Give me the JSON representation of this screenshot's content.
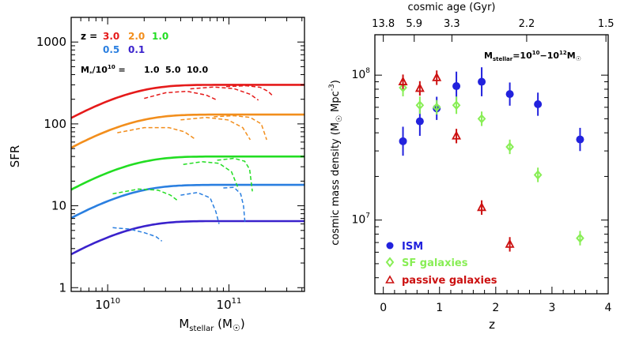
{
  "colors": {
    "z3.0": "#e51a1a",
    "z2.0": "#f28e1c",
    "z1.0": "#22dd22",
    "z0.5": "#2a7fe0",
    "z0.1": "#3a22cc",
    "ism": "#2222dd",
    "sf": "#88ee55",
    "passive": "#cc1111",
    "axis": "#000000"
  },
  "chart_data": [
    {
      "type": "line",
      "ylabel": "SFR",
      "xlabel_main": "M",
      "xlabel_sub": "stellar",
      "xlabel_unit_open": " (M",
      "xlabel_unit_close": ")",
      "xscale": "log",
      "yscale": "log",
      "xlim": [
        5000000000.0,
        420000000000.0
      ],
      "ylim": [
        0.9,
        2000
      ],
      "x_ticks": [
        {
          "value": 10000000000.0,
          "base": "10",
          "exp": "10"
        },
        {
          "value": 100000000000.0,
          "base": "10",
          "exp": "11"
        }
      ],
      "y_ticks": [
        {
          "value": 1,
          "label": "1"
        },
        {
          "value": 10,
          "label": "10"
        },
        {
          "value": 100,
          "label": "100"
        },
        {
          "value": 1000,
          "label": "1000"
        }
      ],
      "legend": {
        "z_prefix": "z =",
        "z_row1": [
          {
            "label": "3.0",
            "color_key": "z3.0"
          },
          {
            "label": "2.0",
            "color_key": "z2.0"
          },
          {
            "label": "1.0",
            "color_key": "z1.0"
          }
        ],
        "z_row2": [
          {
            "label": "0.5",
            "color_key": "z0.5"
          },
          {
            "label": "0.1",
            "color_key": "z0.1"
          }
        ],
        "m_label_main": "M",
        "m_label_sub": "*",
        "m_label_rest": "/10",
        "m_label_exp": "10",
        "m_label_eq": " =",
        "m_values": [
          "1.0",
          "5.0",
          "10.0"
        ]
      },
      "series": [
        {
          "name": "3.0",
          "color_key": "z3.0",
          "style": "solid",
          "amp": 300,
          "mc": 10000000000.0
        },
        {
          "name": "2.0",
          "color_key": "z2.0",
          "style": "solid",
          "amp": 130,
          "mc": 10000000000.0
        },
        {
          "name": "1.0",
          "color_key": "z1.0",
          "style": "solid",
          "amp": 40,
          "mc": 10000000000.0
        },
        {
          "name": "0.5",
          "color_key": "z0.5",
          "style": "solid",
          "amp": 18,
          "mc": 10000000000.0
        },
        {
          "name": "0.1",
          "color_key": "z0.1",
          "style": "solid",
          "amp": 6.5,
          "mc": 10000000000.0
        }
      ],
      "quench_curves": [
        {
          "color_key": "z3.0",
          "x": [
            20000000000.0,
            30000000000.0,
            45000000000.0,
            65000000000.0,
            80000000000.0
          ],
          "y": [
            205,
            240,
            250,
            225,
            195
          ]
        },
        {
          "color_key": "z3.0",
          "x": [
            48000000000.0,
            75000000000.0,
            110000000000.0,
            150000000000.0,
            175000000000.0
          ],
          "y": [
            268,
            282,
            270,
            230,
            195
          ]
        },
        {
          "color_key": "z3.0",
          "x": [
            95000000000.0,
            140000000000.0,
            180000000000.0,
            210000000000.0,
            230000000000.0
          ],
          "y": [
            286,
            292,
            280,
            250,
            220
          ]
        },
        {
          "color_key": "z2.0",
          "x": [
            12000000000.0,
            20000000000.0,
            32000000000.0,
            43000000000.0,
            52000000000.0
          ],
          "y": [
            78,
            90,
            90,
            80,
            66
          ]
        },
        {
          "color_key": "z2.0",
          "x": [
            40000000000.0,
            65000000000.0,
            98000000000.0,
            130000000000.0,
            150000000000.0
          ],
          "y": [
            112,
            120,
            112,
            90,
            64
          ]
        },
        {
          "color_key": "z2.0",
          "x": [
            75000000000.0,
            110000000000.0,
            150000000000.0,
            185000000000.0,
            205000000000.0
          ],
          "y": [
            122,
            126,
            120,
            100,
            64
          ]
        },
        {
          "color_key": "z1.0",
          "x": [
            11000000000.0,
            18000000000.0,
            26000000000.0,
            33000000000.0,
            38000000000.0
          ],
          "y": [
            14,
            16,
            15.5,
            13.5,
            11.5
          ]
        },
        {
          "color_key": "z1.0",
          "x": [
            42000000000.0,
            60000000000.0,
            83000000000.0,
            105000000000.0,
            120000000000.0
          ],
          "y": [
            32,
            34.5,
            33,
            26,
            16
          ]
        },
        {
          "color_key": "z1.0",
          "x": [
            80000000000.0,
            110000000000.0,
            135000000000.0,
            148000000000.0,
            156000000000.0
          ],
          "y": [
            36,
            38,
            35,
            28,
            15
          ]
        },
        {
          "color_key": "z0.5",
          "x": [
            11000000000.0,
            15000000000.0,
            20000000000.0,
            25000000000.0,
            28000000000.0
          ],
          "y": [
            5.4,
            5.2,
            4.7,
            4.2,
            3.7
          ]
        },
        {
          "color_key": "z0.5",
          "x": [
            40000000000.0,
            55000000000.0,
            70000000000.0,
            78000000000.0,
            83000000000.0
          ],
          "y": [
            13.5,
            14.5,
            12.5,
            8.5,
            6.0
          ]
        },
        {
          "color_key": "z0.5",
          "x": [
            90000000000.0,
            110000000000.0,
            125000000000.0,
            132000000000.0,
            136000000000.0
          ],
          "y": [
            16.5,
            16.8,
            14.0,
            10.0,
            6.0
          ]
        }
      ]
    },
    {
      "type": "scatter",
      "ylabel_parts": {
        "main": "cosmic mass density (M",
        "unit": " Mpc",
        "exp": "-3",
        "close": ")"
      },
      "xlabel": "z",
      "top_axis_label": "cosmic age (Gyr)",
      "yscale": "log",
      "xlim": [
        -0.15,
        4.0
      ],
      "ylim": [
        3100000.0,
        190000000.0
      ],
      "x_ticks": [
        {
          "value": 0,
          "label": "0"
        },
        {
          "value": 1,
          "label": "1"
        },
        {
          "value": 2,
          "label": "2"
        },
        {
          "value": 3,
          "label": "3"
        },
        {
          "value": 4,
          "label": "4"
        }
      ],
      "y_ticks": [
        {
          "value": 10000000.0,
          "base": "10",
          "exp": "7"
        },
        {
          "value": 100000000.0,
          "base": "10",
          "exp": "8"
        }
      ],
      "top_ticks": [
        {
          "z": 0.0,
          "label": "13.8"
        },
        {
          "z": 0.55,
          "label": "5.9"
        },
        {
          "z": 1.22,
          "label": "3.3"
        },
        {
          "z": 2.55,
          "label": "2.2"
        },
        {
          "z": 3.96,
          "label": "1.5"
        }
      ],
      "annotation": {
        "main": "M",
        "sub": "stellar",
        "eq": "=10",
        "exp1": "10",
        "dash": "−10",
        "exp2": "12",
        "m": "M"
      },
      "legend": [
        {
          "label": "ISM",
          "series": "ism"
        },
        {
          "label": "SF galaxies",
          "series": "sf"
        },
        {
          "label": "passive galaxies",
          "series": "passive"
        }
      ],
      "series": [
        {
          "name": "ISM",
          "key": "ism",
          "marker": "circle",
          "x": [
            0.35,
            0.65,
            0.95,
            1.3,
            1.75,
            2.25,
            2.75,
            3.5
          ],
          "y": [
            35000000.0,
            48000000.0,
            59000000.0,
            84000000.0,
            90000000.0,
            74000000.0,
            63000000.0,
            36000000.0
          ],
          "err": [
            0.1,
            0.1,
            0.08,
            0.1,
            0.1,
            0.08,
            0.08,
            0.08
          ]
        },
        {
          "name": "SF galaxies",
          "key": "sf",
          "marker": "diamond",
          "x": [
            0.35,
            0.65,
            0.95,
            1.3,
            1.75,
            2.25,
            2.75,
            3.5
          ],
          "y": [
            82000000.0,
            62000000.0,
            60000000.0,
            62000000.0,
            50000000.0,
            32000000.0,
            20500000.0,
            7500000.0
          ],
          "err": [
            0.06,
            0.06,
            0.05,
            0.06,
            0.05,
            0.05,
            0.05,
            0.05
          ]
        },
        {
          "name": "passive galaxies",
          "key": "passive",
          "marker": "triangle",
          "x": [
            0.35,
            0.65,
            0.95,
            1.3,
            1.75,
            2.25
          ],
          "y": [
            90000000.0,
            81000000.0,
            96000000.0,
            38000000.0,
            12200000.0,
            6800000.0
          ],
          "err": [
            0.05,
            0.05,
            0.05,
            0.05,
            0.05,
            0.05
          ]
        }
      ]
    }
  ]
}
